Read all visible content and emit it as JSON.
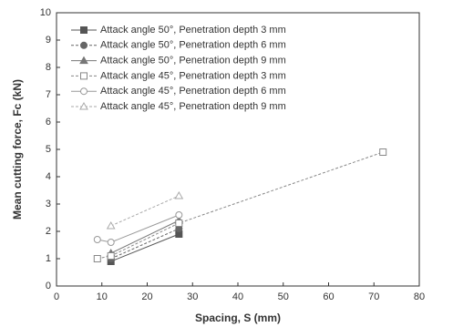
{
  "chart_data": {
    "type": "line",
    "x_label": "Spacing, S (mm)",
    "y_label": "Mean cutting force, Fc (kN)",
    "xlim": [
      0,
      80
    ],
    "xticks": [
      0,
      10,
      20,
      30,
      40,
      50,
      60,
      70,
      80
    ],
    "ylim": [
      0,
      10
    ],
    "yticks": [
      0,
      1,
      2,
      3,
      4,
      5,
      6,
      7,
      8,
      9,
      10
    ],
    "legend": "upper-left",
    "series": [
      {
        "name": "Attack angle 50°, Penetration depth 3 mm",
        "color": "#555555",
        "marker": "square-filled",
        "x": [
          12,
          27
        ],
        "values": [
          0.9,
          1.9
        ]
      },
      {
        "name": "Attack angle 50°, Penetration depth 6 mm",
        "color": "#666666",
        "marker": "circle-filled",
        "x": [
          12,
          27
        ],
        "values": [
          1.0,
          2.1
        ]
      },
      {
        "name": "Attack angle 50°, Penetration depth 9 mm",
        "color": "#777777",
        "marker": "triangle-filled",
        "x": [
          12,
          27
        ],
        "values": [
          1.2,
          2.4
        ]
      },
      {
        "name": "Attack angle 45°, Penetration depth 3 mm",
        "color": "#888888",
        "marker": "square-open",
        "x": [
          9,
          12,
          27,
          72
        ],
        "values": [
          1.0,
          1.1,
          2.3,
          4.9
        ]
      },
      {
        "name": "Attack angle 45°, Penetration depth 6 mm",
        "color": "#999999",
        "marker": "circle-open",
        "x": [
          9,
          12,
          27
        ],
        "values": [
          1.7,
          1.6,
          2.6
        ]
      },
      {
        "name": "Attack angle 45°, Penetration depth 9 mm",
        "color": "#aaaaaa",
        "marker": "triangle-open",
        "x": [
          12,
          27
        ],
        "values": [
          2.2,
          3.3
        ]
      }
    ]
  }
}
